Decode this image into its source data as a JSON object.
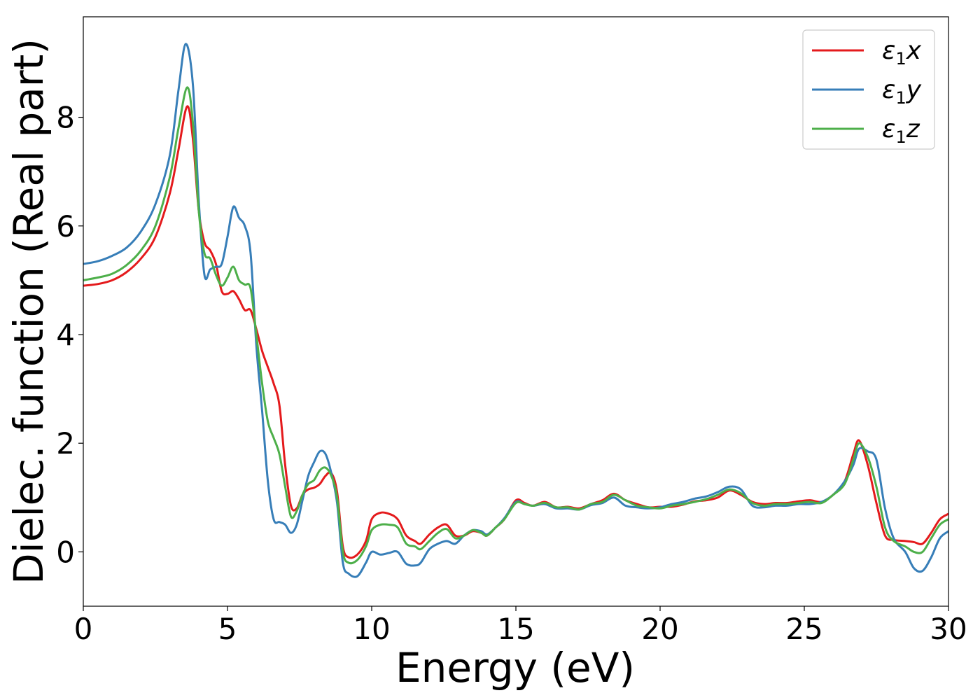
{
  "chart_data": {
    "type": "line",
    "title": "",
    "xlabel": "Energy (eV)",
    "ylabel": "Dielec. function (Real part)",
    "xlim": [
      0,
      30
    ],
    "ylim": [
      -1.0,
      9.85
    ],
    "xticks": [
      0,
      5,
      10,
      15,
      20,
      25,
      30
    ],
    "xtick_labels": [
      "0",
      "5",
      "10",
      "15",
      "20",
      "25",
      "30"
    ],
    "yticks": [
      0,
      2,
      4,
      6,
      8
    ],
    "ytick_labels": [
      "0",
      "2",
      "4",
      "6",
      "8"
    ],
    "grid": false,
    "legend_position": "top-right",
    "series": [
      {
        "name": "ε₁x",
        "legend_main": "ε",
        "legend_sub": "1",
        "legend_var": "x",
        "color": "#e41a1c",
        "points": [
          [
            0,
            4.9
          ],
          [
            0.5,
            4.93
          ],
          [
            1.0,
            5.0
          ],
          [
            1.5,
            5.15
          ],
          [
            2.0,
            5.4
          ],
          [
            2.5,
            5.8
          ],
          [
            3.0,
            6.6
          ],
          [
            3.3,
            7.4
          ],
          [
            3.6,
            8.2
          ],
          [
            3.8,
            7.6
          ],
          [
            4.0,
            6.3
          ],
          [
            4.2,
            5.7
          ],
          [
            4.4,
            5.55
          ],
          [
            4.6,
            5.3
          ],
          [
            4.8,
            4.8
          ],
          [
            5.0,
            4.75
          ],
          [
            5.2,
            4.8
          ],
          [
            5.4,
            4.65
          ],
          [
            5.6,
            4.45
          ],
          [
            5.8,
            4.45
          ],
          [
            6.0,
            4.1
          ],
          [
            6.2,
            3.7
          ],
          [
            6.4,
            3.4
          ],
          [
            6.6,
            3.1
          ],
          [
            6.8,
            2.7
          ],
          [
            7.0,
            1.6
          ],
          [
            7.2,
            0.85
          ],
          [
            7.4,
            0.8
          ],
          [
            7.6,
            1.05
          ],
          [
            7.8,
            1.15
          ],
          [
            8.0,
            1.18
          ],
          [
            8.2,
            1.25
          ],
          [
            8.4,
            1.4
          ],
          [
            8.6,
            1.45
          ],
          [
            8.8,
            1.1
          ],
          [
            9.0,
            0.1
          ],
          [
            9.2,
            -0.1
          ],
          [
            9.5,
            -0.05
          ],
          [
            9.8,
            0.2
          ],
          [
            10.0,
            0.6
          ],
          [
            10.3,
            0.72
          ],
          [
            10.6,
            0.7
          ],
          [
            10.9,
            0.6
          ],
          [
            11.2,
            0.3
          ],
          [
            11.5,
            0.2
          ],
          [
            11.7,
            0.15
          ],
          [
            12.0,
            0.32
          ],
          [
            12.3,
            0.45
          ],
          [
            12.6,
            0.5
          ],
          [
            12.9,
            0.3
          ],
          [
            13.2,
            0.3
          ],
          [
            13.5,
            0.38
          ],
          [
            13.8,
            0.35
          ],
          [
            14.0,
            0.3
          ],
          [
            14.3,
            0.45
          ],
          [
            14.6,
            0.6
          ],
          [
            15.0,
            0.95
          ],
          [
            15.3,
            0.9
          ],
          [
            15.6,
            0.85
          ],
          [
            16.0,
            0.92
          ],
          [
            16.4,
            0.82
          ],
          [
            16.8,
            0.83
          ],
          [
            17.2,
            0.8
          ],
          [
            17.6,
            0.88
          ],
          [
            18.0,
            0.95
          ],
          [
            18.4,
            1.07
          ],
          [
            18.8,
            0.95
          ],
          [
            19.2,
            0.88
          ],
          [
            19.6,
            0.82
          ],
          [
            20.0,
            0.83
          ],
          [
            20.4,
            0.83
          ],
          [
            20.8,
            0.87
          ],
          [
            21.2,
            0.93
          ],
          [
            21.6,
            0.95
          ],
          [
            22.0,
            1.0
          ],
          [
            22.4,
            1.13
          ],
          [
            22.8,
            1.05
          ],
          [
            23.2,
            0.92
          ],
          [
            23.6,
            0.88
          ],
          [
            24.0,
            0.9
          ],
          [
            24.4,
            0.9
          ],
          [
            24.8,
            0.93
          ],
          [
            25.2,
            0.95
          ],
          [
            25.6,
            0.92
          ],
          [
            26.0,
            1.05
          ],
          [
            26.4,
            1.3
          ],
          [
            26.7,
            1.8
          ],
          [
            26.9,
            2.05
          ],
          [
            27.2,
            1.6
          ],
          [
            27.5,
            0.9
          ],
          [
            27.8,
            0.3
          ],
          [
            28.1,
            0.22
          ],
          [
            28.5,
            0.2
          ],
          [
            28.8,
            0.18
          ],
          [
            29.1,
            0.15
          ],
          [
            29.4,
            0.35
          ],
          [
            29.7,
            0.6
          ],
          [
            30.0,
            0.7
          ]
        ]
      },
      {
        "name": "ε₁y",
        "legend_main": "ε",
        "legend_sub": "1",
        "legend_var": "y",
        "color": "#377eb8",
        "points": [
          [
            0,
            5.3
          ],
          [
            0.5,
            5.35
          ],
          [
            1.0,
            5.45
          ],
          [
            1.5,
            5.6
          ],
          [
            2.0,
            5.9
          ],
          [
            2.5,
            6.4
          ],
          [
            3.0,
            7.3
          ],
          [
            3.3,
            8.5
          ],
          [
            3.55,
            9.35
          ],
          [
            3.8,
            8.6
          ],
          [
            4.0,
            6.5
          ],
          [
            4.2,
            5.1
          ],
          [
            4.4,
            5.2
          ],
          [
            4.6,
            5.25
          ],
          [
            4.8,
            5.3
          ],
          [
            5.0,
            5.8
          ],
          [
            5.2,
            6.35
          ],
          [
            5.4,
            6.15
          ],
          [
            5.6,
            6.0
          ],
          [
            5.8,
            5.5
          ],
          [
            6.0,
            3.8
          ],
          [
            6.2,
            2.6
          ],
          [
            6.4,
            1.3
          ],
          [
            6.6,
            0.6
          ],
          [
            6.8,
            0.55
          ],
          [
            7.0,
            0.5
          ],
          [
            7.2,
            0.35
          ],
          [
            7.4,
            0.5
          ],
          [
            7.6,
            0.95
          ],
          [
            7.8,
            1.4
          ],
          [
            8.0,
            1.65
          ],
          [
            8.2,
            1.85
          ],
          [
            8.4,
            1.8
          ],
          [
            8.6,
            1.45
          ],
          [
            8.8,
            0.9
          ],
          [
            9.0,
            -0.2
          ],
          [
            9.2,
            -0.4
          ],
          [
            9.5,
            -0.45
          ],
          [
            9.8,
            -0.2
          ],
          [
            10.0,
            0.0
          ],
          [
            10.3,
            -0.05
          ],
          [
            10.6,
            -0.02
          ],
          [
            10.9,
            0.0
          ],
          [
            11.2,
            -0.22
          ],
          [
            11.5,
            -0.25
          ],
          [
            11.7,
            -0.2
          ],
          [
            12.0,
            0.05
          ],
          [
            12.3,
            0.15
          ],
          [
            12.6,
            0.2
          ],
          [
            12.9,
            0.15
          ],
          [
            13.2,
            0.3
          ],
          [
            13.5,
            0.4
          ],
          [
            13.8,
            0.38
          ],
          [
            14.0,
            0.32
          ],
          [
            14.3,
            0.45
          ],
          [
            14.6,
            0.62
          ],
          [
            15.0,
            0.92
          ],
          [
            15.3,
            0.88
          ],
          [
            15.6,
            0.85
          ],
          [
            16.0,
            0.88
          ],
          [
            16.4,
            0.8
          ],
          [
            16.8,
            0.8
          ],
          [
            17.2,
            0.78
          ],
          [
            17.6,
            0.86
          ],
          [
            18.0,
            0.9
          ],
          [
            18.4,
            1.0
          ],
          [
            18.8,
            0.85
          ],
          [
            19.2,
            0.82
          ],
          [
            19.6,
            0.8
          ],
          [
            20.0,
            0.82
          ],
          [
            20.4,
            0.88
          ],
          [
            20.8,
            0.92
          ],
          [
            21.2,
            0.98
          ],
          [
            21.6,
            1.02
          ],
          [
            22.0,
            1.1
          ],
          [
            22.4,
            1.2
          ],
          [
            22.8,
            1.15
          ],
          [
            23.2,
            0.85
          ],
          [
            23.6,
            0.82
          ],
          [
            24.0,
            0.85
          ],
          [
            24.4,
            0.85
          ],
          [
            24.8,
            0.88
          ],
          [
            25.2,
            0.88
          ],
          [
            25.6,
            0.92
          ],
          [
            26.0,
            1.05
          ],
          [
            26.4,
            1.3
          ],
          [
            26.7,
            1.6
          ],
          [
            26.9,
            1.9
          ],
          [
            27.2,
            1.85
          ],
          [
            27.5,
            1.7
          ],
          [
            27.8,
            0.8
          ],
          [
            28.1,
            0.25
          ],
          [
            28.5,
            0.0
          ],
          [
            28.8,
            -0.3
          ],
          [
            29.1,
            -0.35
          ],
          [
            29.4,
            -0.1
          ],
          [
            29.7,
            0.25
          ],
          [
            30.0,
            0.38
          ]
        ]
      },
      {
        "name": "ε₁z",
        "legend_main": "ε",
        "legend_sub": "1",
        "legend_var": "z",
        "color": "#4daf4a",
        "points": [
          [
            0,
            5.0
          ],
          [
            0.5,
            5.05
          ],
          [
            1.0,
            5.12
          ],
          [
            1.5,
            5.28
          ],
          [
            2.0,
            5.55
          ],
          [
            2.5,
            6.0
          ],
          [
            3.0,
            6.9
          ],
          [
            3.3,
            7.8
          ],
          [
            3.6,
            8.55
          ],
          [
            3.8,
            7.9
          ],
          [
            4.0,
            6.3
          ],
          [
            4.2,
            5.5
          ],
          [
            4.4,
            5.4
          ],
          [
            4.6,
            5.1
          ],
          [
            4.8,
            4.9
          ],
          [
            5.0,
            5.05
          ],
          [
            5.2,
            5.25
          ],
          [
            5.4,
            5.0
          ],
          [
            5.6,
            4.92
          ],
          [
            5.8,
            4.85
          ],
          [
            6.0,
            4.0
          ],
          [
            6.2,
            3.1
          ],
          [
            6.4,
            2.4
          ],
          [
            6.6,
            2.1
          ],
          [
            6.8,
            1.8
          ],
          [
            7.0,
            1.2
          ],
          [
            7.2,
            0.65
          ],
          [
            7.4,
            0.75
          ],
          [
            7.6,
            1.05
          ],
          [
            7.8,
            1.25
          ],
          [
            8.0,
            1.32
          ],
          [
            8.2,
            1.5
          ],
          [
            8.4,
            1.55
          ],
          [
            8.6,
            1.4
          ],
          [
            8.8,
            1.0
          ],
          [
            9.0,
            0.0
          ],
          [
            9.2,
            -0.2
          ],
          [
            9.5,
            -0.15
          ],
          [
            9.8,
            0.1
          ],
          [
            10.0,
            0.4
          ],
          [
            10.3,
            0.5
          ],
          [
            10.6,
            0.5
          ],
          [
            10.9,
            0.45
          ],
          [
            11.2,
            0.15
          ],
          [
            11.5,
            0.1
          ],
          [
            11.7,
            0.05
          ],
          [
            12.0,
            0.2
          ],
          [
            12.3,
            0.35
          ],
          [
            12.6,
            0.42
          ],
          [
            12.9,
            0.25
          ],
          [
            13.2,
            0.3
          ],
          [
            13.5,
            0.4
          ],
          [
            13.8,
            0.35
          ],
          [
            14.0,
            0.3
          ],
          [
            14.3,
            0.45
          ],
          [
            14.6,
            0.6
          ],
          [
            15.0,
            0.9
          ],
          [
            15.3,
            0.88
          ],
          [
            15.6,
            0.85
          ],
          [
            16.0,
            0.9
          ],
          [
            16.4,
            0.82
          ],
          [
            16.8,
            0.82
          ],
          [
            17.2,
            0.78
          ],
          [
            17.6,
            0.88
          ],
          [
            18.0,
            0.92
          ],
          [
            18.4,
            1.05
          ],
          [
            18.8,
            0.95
          ],
          [
            19.2,
            0.85
          ],
          [
            19.6,
            0.82
          ],
          [
            20.0,
            0.8
          ],
          [
            20.4,
            0.85
          ],
          [
            20.8,
            0.88
          ],
          [
            21.2,
            0.92
          ],
          [
            21.6,
            0.97
          ],
          [
            22.0,
            1.05
          ],
          [
            22.4,
            1.15
          ],
          [
            22.8,
            1.08
          ],
          [
            23.2,
            0.9
          ],
          [
            23.6,
            0.85
          ],
          [
            24.0,
            0.88
          ],
          [
            24.4,
            0.88
          ],
          [
            24.8,
            0.9
          ],
          [
            25.2,
            0.92
          ],
          [
            25.6,
            0.9
          ],
          [
            26.0,
            1.05
          ],
          [
            26.4,
            1.25
          ],
          [
            26.7,
            1.7
          ],
          [
            26.9,
            2.0
          ],
          [
            27.2,
            1.75
          ],
          [
            27.5,
            1.2
          ],
          [
            27.8,
            0.45
          ],
          [
            28.1,
            0.2
          ],
          [
            28.5,
            0.1
          ],
          [
            28.8,
            0.0
          ],
          [
            29.1,
            0.0
          ],
          [
            29.4,
            0.25
          ],
          [
            29.7,
            0.5
          ],
          [
            30.0,
            0.6
          ]
        ]
      }
    ]
  }
}
